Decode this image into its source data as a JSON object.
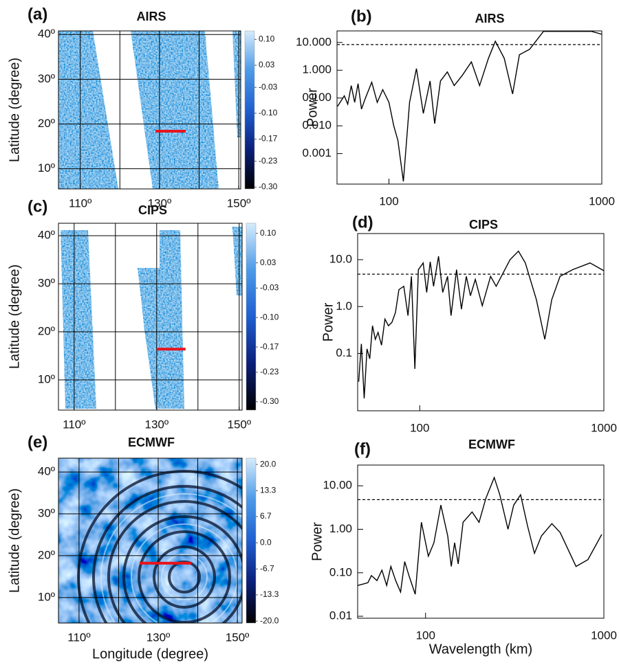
{
  "chart_data": [
    {
      "type": "map",
      "panel_label": "(a)",
      "title": "AIRS",
      "ylabel": "Latitude (degree)",
      "xlim": [
        104.5,
        150.5
      ],
      "ylim": [
        5.5,
        40.8
      ],
      "xticks": [
        {
          "value": 110,
          "label": "110º"
        },
        {
          "value": 130,
          "label": "130º"
        },
        {
          "value": 150,
          "label": "150º"
        }
      ],
      "yticks": [
        {
          "value": 10,
          "label": "10º"
        },
        {
          "value": 20,
          "label": "20º"
        },
        {
          "value": 30,
          "label": "30º"
        },
        {
          "value": 40,
          "label": "40º"
        }
      ],
      "xgrid": [
        110,
        120,
        130,
        140,
        150
      ],
      "highlight": {
        "x": [
          129,
          136.6
        ],
        "y": [
          18.4,
          18.4
        ],
        "color": "#e8141c"
      },
      "colorbar": {
        "lim": [
          -0.305,
          0.123
        ],
        "colors": [
          "#000000",
          "#0b1f7a",
          "#1f5fd0",
          "#4c9ae8",
          "#d6ecfc"
        ],
        "ticks": [
          {
            "value": 0.1,
            "label": "0.10"
          },
          0.03,
          -0.03,
          {
            "value": -0.1,
            "label": "-0.10"
          },
          -0.17,
          -0.23,
          {
            "value": -0.3,
            "label": "-0.30"
          }
        ]
      }
    },
    {
      "type": "line",
      "panel_label": "(b)",
      "title": "AIRS",
      "ylabel": "Power",
      "log_x": true,
      "log_y": true,
      "color": "#000000",
      "xlim": [
        57,
        1000
      ],
      "ylim": [
        8e-05,
        26
      ],
      "xticks": [
        100,
        1000
      ],
      "yticks": [
        {
          "value": 10,
          "label": "10.000"
        },
        {
          "value": 1,
          "label": "1.000"
        },
        {
          "value": 0.1,
          "label": "0.100"
        },
        {
          "value": 0.01,
          "label": "0.010"
        },
        0.001
      ],
      "reference_line": 8.4,
      "x": [
        57.3,
        61.7,
        64.0,
        66.5,
        69.0,
        71.6,
        74.3,
        77.1,
        83.0,
        88.1,
        93.5,
        100,
        105.3,
        110.1,
        116.9,
        125,
        134.6,
        145,
        156,
        164,
        174.6,
        188,
        202.5,
        221,
        244,
        266.5,
        293.5,
        316,
        348,
        381,
        410,
        458,
        532,
        716,
        895,
        1000
      ],
      "values": [
        0.05,
        0.12,
        0.06,
        0.28,
        0.07,
        0.33,
        0.04,
        0.09,
        0.37,
        0.07,
        0.2,
        0.07,
        0.01,
        0.003,
        0.0001,
        0.07,
        1.15,
        0.028,
        0.41,
        0.012,
        0.41,
        0.87,
        0.28,
        0.65,
        2.0,
        0.28,
        2.7,
        11,
        2.7,
        0.14,
        3.6,
        5.7,
        25,
        25,
        25,
        19.8
      ]
    },
    {
      "type": "map",
      "panel_label": "(c)",
      "title": "CIPS",
      "ylabel": "Latitude (degree)",
      "xlim": [
        106.2,
        150.7
      ],
      "ylim": [
        3.7,
        42.6
      ],
      "xticks": [
        {
          "value": 110,
          "label": "110º"
        },
        {
          "value": 130,
          "label": "130º"
        },
        {
          "value": 150,
          "label": "150º"
        }
      ],
      "yticks": [
        {
          "value": 10,
          "label": "10º"
        },
        {
          "value": 20,
          "label": "20º"
        },
        {
          "value": 30,
          "label": "30º"
        },
        {
          "value": 40,
          "label": "40º"
        }
      ],
      "xgrid": [
        110,
        120,
        130,
        140,
        150
      ],
      "highlight": {
        "x": [
          130,
          137
        ],
        "y": [
          16.4,
          16.4
        ],
        "color": "#e8141c"
      },
      "colorbar": {
        "lim": [
          -0.32,
          0.124
        ],
        "colors": [
          "#000000",
          "#0b1f7a",
          "#1f5fd0",
          "#4c9ae8",
          "#d6ecfc"
        ],
        "ticks": [
          {
            "value": 0.1,
            "label": "0.10"
          },
          0.03,
          -0.03,
          {
            "value": -0.1,
            "label": "-0.10"
          },
          -0.17,
          -0.23,
          {
            "value": -0.3,
            "label": "-0.30"
          }
        ]
      }
    },
    {
      "type": "line",
      "panel_label": "(d)",
      "title": "CIPS",
      "ylabel": "Power",
      "log_x": true,
      "log_y": true,
      "color": "#000000",
      "xlim": [
        46,
        1000
      ],
      "ylim": [
        0.006,
        36
      ],
      "xticks": [
        100,
        1000
      ],
      "yticks": [
        {
          "value": 10,
          "label": "10.0"
        },
        {
          "value": 1,
          "label": "1.0"
        },
        0.1
      ],
      "reference_line": 4.9,
      "x": [
        46.6,
        48.2,
        49.9,
        51.7,
        53.5,
        55.4,
        57.4,
        59.4,
        62.0,
        64.7,
        67.6,
        70.6,
        73.8,
        77.1,
        81.9,
        86.3,
        90.1,
        94.1,
        98.3,
        104.4,
        109.1,
        114,
        118.9,
        126.5,
        133.3,
        141.6,
        147.9,
        158.5,
        168.4,
        179,
        188.5,
        200.4,
        218.6,
        242.6,
        260,
        309.5,
        343.5,
        374.6,
        430,
        477.6,
        521,
        578,
        676,
        841,
        1000
      ],
      "values": [
        0.025,
        0.16,
        0.011,
        0.125,
        0.077,
        0.39,
        0.2,
        0.28,
        0.15,
        0.54,
        0.39,
        0.46,
        0.75,
        2.3,
        2.7,
        0.64,
        4.4,
        0.047,
        6.1,
        8.5,
        2.0,
        9,
        2.7,
        11.8,
        2.0,
        4.4,
        0.64,
        6.1,
        0.88,
        4.4,
        1.7,
        3.8,
        1.04,
        4.4,
        2.7,
        10,
        15.2,
        8.5,
        1.4,
        0.2,
        1.4,
        4.4,
        6.1,
        8.5,
        5.8
      ]
    },
    {
      "type": "map",
      "panel_label": "(e)",
      "title": "ECMWF",
      "ylabel": "Latitude (degree)",
      "xlabel": "Longitude (degree)",
      "xlim": [
        104.8,
        151.2
      ],
      "ylim": [
        3.9,
        43.3
      ],
      "xticks": [
        {
          "value": 110,
          "label": "110º"
        },
        {
          "value": 130,
          "label": "130º"
        },
        {
          "value": 150,
          "label": "150º"
        }
      ],
      "yticks": [
        {
          "value": 10,
          "label": "10º"
        },
        {
          "value": 20,
          "label": "20º"
        },
        {
          "value": 30,
          "label": "30º"
        },
        {
          "value": 40,
          "label": "40º"
        }
      ],
      "xgrid": [
        110,
        120,
        130,
        140,
        150
      ],
      "highlight": {
        "x": [
          125.3,
          138.4
        ],
        "y": [
          18.2,
          18.2
        ],
        "color": "#e8141c"
      },
      "colorbar": {
        "lim": [
          -20.5,
          21.6
        ],
        "colors": [
          "#000000",
          "#0b1f7a",
          "#1f5fd0",
          "#4c9ae8",
          "#d6ecfc"
        ],
        "ticks": [
          {
            "value": 20,
            "label": "20.0"
          },
          13.3,
          {
            "value": 6.7,
            "label": "6.7"
          },
          {
            "value": 0,
            "label": "0.0"
          },
          -6.7,
          -13.3,
          {
            "value": -20,
            "label": "-20.0"
          }
        ]
      }
    },
    {
      "type": "line",
      "panel_label": "(f)",
      "title": "ECMWF",
      "ylabel": "Power",
      "xlabel": "Wavelength (km)",
      "log_x": true,
      "log_y": true,
      "color": "#000000",
      "xlim": [
        41.6,
        1000
      ],
      "ylim": [
        0.009,
        30
      ],
      "xticks": [
        100,
        1000
      ],
      "yticks": [
        {
          "value": 10,
          "label": "10.00"
        },
        {
          "value": 1,
          "label": "1.00"
        },
        {
          "value": 0.1,
          "label": "0.10"
        },
        0.01
      ],
      "reference_line": 4.8,
      "x": [
        41.6,
        44.7,
        47.5,
        49.7,
        53.4,
        56.9,
        60.5,
        63.9,
        68.0,
        72.4,
        76.4,
        80.7,
        87.5,
        94.8,
        103.7,
        111.4,
        121.8,
        133.2,
        139.3,
        145.6,
        152.4,
        162.3,
        182.3,
        199.5,
        218,
        242.8,
        260.8,
        290,
        312,
        341,
        373,
        408,
        446.5,
        511,
        569,
        698,
        814,
        973
      ],
      "values": [
        0.051,
        0.055,
        0.059,
        0.086,
        0.066,
        0.115,
        0.051,
        0.14,
        0.066,
        0.036,
        0.18,
        0.086,
        0.032,
        1.45,
        0.24,
        0.49,
        3.6,
        0.7,
        0.14,
        0.49,
        0.16,
        1.45,
        2.5,
        1.45,
        5.2,
        15.5,
        6.2,
        1.0,
        3.6,
        6.2,
        1.2,
        0.28,
        0.7,
        1.35,
        0.84,
        0.14,
        0.2,
        0.76
      ]
    }
  ]
}
